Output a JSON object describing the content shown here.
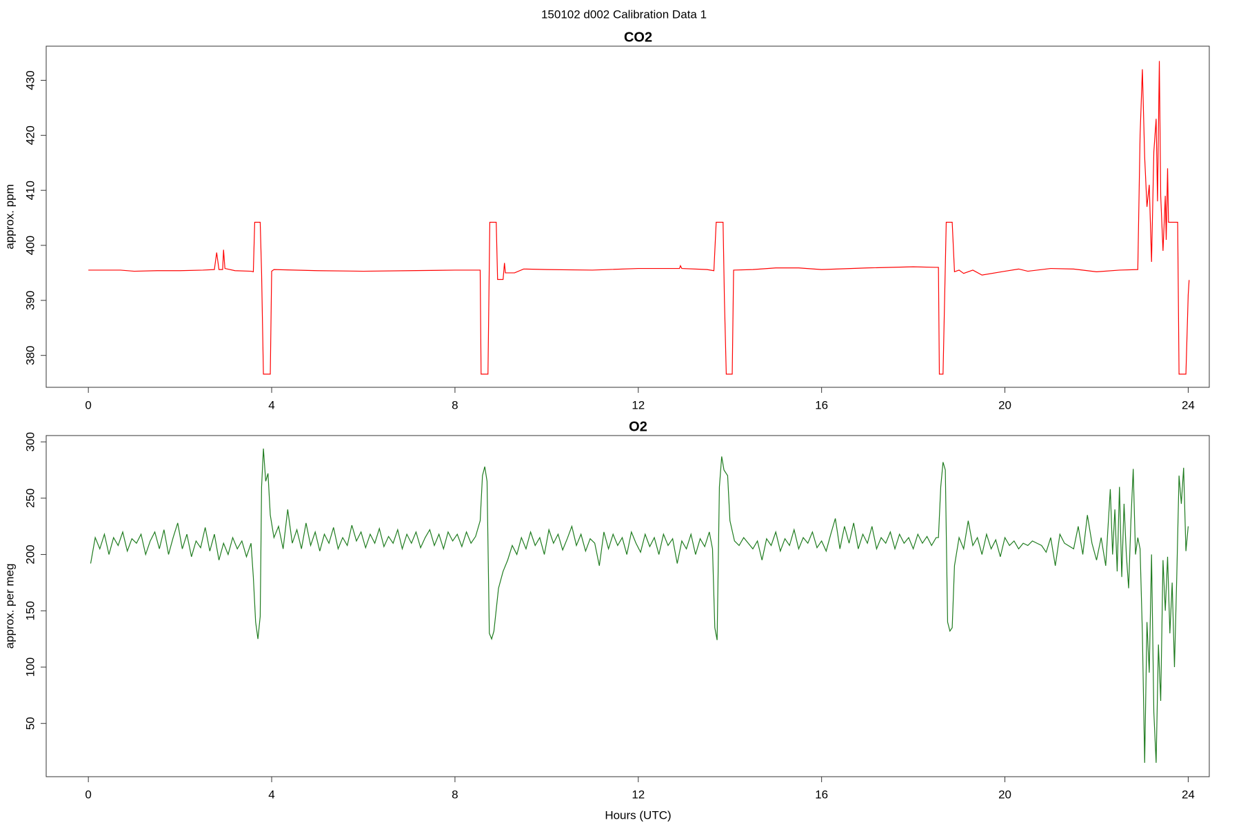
{
  "title": "150102   d002   Calibration Data 1",
  "chart_data": [
    {
      "type": "line",
      "title": "CO2",
      "y_label": "approx. ppm",
      "xlim": [
        -0.92,
        24.46
      ],
      "xticks": [
        0,
        4,
        8,
        12,
        16,
        20,
        24
      ],
      "ylim": [
        374.2,
        436.2
      ],
      "yticks": [
        380,
        390,
        400,
        410,
        420,
        430
      ],
      "series": [
        {
          "name": "CO2",
          "color": "#ff0000",
          "x": [
            0,
            0.7,
            1,
            1.5,
            2,
            2.5,
            2.75,
            2.8,
            2.85,
            2.93,
            2.95,
            2.98,
            3.2,
            3.55,
            3.6,
            3.63,
            3.75,
            3.78,
            3.82,
            3.97,
            4.0,
            4.05,
            5,
            6,
            7,
            8,
            8.55,
            8.57,
            8.72,
            8.76,
            8.9,
            8.93,
            9.05,
            9.08,
            9.1,
            9.3,
            9.5,
            10,
            11,
            12,
            12.9,
            12.92,
            12.95,
            13.5,
            13.65,
            13.7,
            13.85,
            13.88,
            13.92,
            14.05,
            14.08,
            14.5,
            15,
            15.5,
            16,
            17,
            18,
            18.5,
            18.55,
            18.57,
            18.65,
            18.72,
            18.85,
            18.9,
            19,
            19.1,
            19.3,
            19.5,
            20,
            20.3,
            20.5,
            21,
            21.5,
            22,
            22.5,
            22.9,
            22.95,
            23.0,
            23.05,
            23.1,
            23.15,
            23.2,
            23.25,
            23.3,
            23.33,
            23.37,
            23.4,
            23.45,
            23.5,
            23.52,
            23.55,
            23.57,
            23.77,
            23.8,
            23.95,
            24.0,
            24.02
          ],
          "values": [
            395.5,
            395.5,
            395.3,
            395.4,
            395.4,
            395.5,
            395.6,
            398.7,
            395.6,
            395.6,
            399.2,
            395.8,
            395.4,
            395.3,
            395.2,
            404.2,
            404.2,
            395,
            376.6,
            376.6,
            395.3,
            395.6,
            395.4,
            395.3,
            395.4,
            395.5,
            395.5,
            376.6,
            376.6,
            404.2,
            404.2,
            393.8,
            393.8,
            396.8,
            395,
            395,
            395.7,
            395.6,
            395.5,
            395.8,
            395.8,
            396.3,
            395.8,
            395.6,
            395.4,
            404.2,
            404.2,
            390,
            376.6,
            376.6,
            395.5,
            395.6,
            395.9,
            395.9,
            395.6,
            395.9,
            396.1,
            396,
            396,
            376.6,
            376.6,
            404.2,
            404.2,
            395.2,
            395.5,
            394.9,
            395.5,
            394.6,
            395.3,
            395.7,
            395.3,
            395.8,
            395.7,
            395.2,
            395.5,
            395.6,
            420,
            432,
            416,
            407,
            411,
            397,
            417,
            423,
            408,
            433.5,
            409,
            399,
            409,
            401,
            414,
            404.2,
            404.2,
            376.6,
            376.6,
            391,
            393.7
          ]
        }
      ]
    },
    {
      "type": "line",
      "title": "O2",
      "y_label": "approx. per meg",
      "x_label": "Hours (UTC)",
      "xlim": [
        -0.92,
        24.46
      ],
      "xticks": [
        0,
        4,
        8,
        12,
        16,
        20,
        24
      ],
      "ylim": [
        2.7,
        305.6
      ],
      "yticks": [
        50,
        100,
        150,
        200,
        250,
        300
      ],
      "series": [
        {
          "name": "O2",
          "color": "#1e7b1e",
          "x": [
            0.05,
            0.15,
            0.25,
            0.35,
            0.45,
            0.55,
            0.65,
            0.75,
            0.85,
            0.95,
            1.05,
            1.15,
            1.25,
            1.35,
            1.45,
            1.55,
            1.65,
            1.75,
            1.85,
            1.95,
            2.05,
            2.15,
            2.25,
            2.35,
            2.45,
            2.55,
            2.65,
            2.75,
            2.85,
            2.95,
            3.05,
            3.15,
            3.25,
            3.35,
            3.45,
            3.55,
            3.6,
            3.65,
            3.7,
            3.75,
            3.78,
            3.82,
            3.87,
            3.92,
            3.97,
            4.05,
            4.15,
            4.25,
            4.35,
            4.45,
            4.55,
            4.65,
            4.75,
            4.85,
            4.95,
            5.05,
            5.15,
            5.25,
            5.35,
            5.45,
            5.55,
            5.65,
            5.75,
            5.85,
            5.95,
            6.05,
            6.15,
            6.25,
            6.35,
            6.45,
            6.55,
            6.65,
            6.75,
            6.85,
            6.95,
            7.05,
            7.15,
            7.25,
            7.35,
            7.45,
            7.55,
            7.65,
            7.75,
            7.85,
            7.95,
            8.05,
            8.15,
            8.25,
            8.35,
            8.45,
            8.55,
            8.6,
            8.65,
            8.7,
            8.75,
            8.8,
            8.85,
            8.95,
            9.05,
            9.15,
            9.25,
            9.35,
            9.45,
            9.55,
            9.65,
            9.75,
            9.85,
            9.95,
            10.05,
            10.15,
            10.25,
            10.35,
            10.45,
            10.55,
            10.65,
            10.75,
            10.85,
            10.95,
            11.05,
            11.15,
            11.25,
            11.35,
            11.45,
            11.55,
            11.65,
            11.75,
            11.85,
            11.95,
            12.05,
            12.15,
            12.25,
            12.35,
            12.45,
            12.55,
            12.65,
            12.75,
            12.85,
            12.95,
            13.05,
            13.15,
            13.25,
            13.35,
            13.45,
            13.55,
            13.62,
            13.67,
            13.72,
            13.77,
            13.82,
            13.87,
            13.95,
            14.0,
            14.1,
            14.2,
            14.3,
            14.4,
            14.5,
            14.6,
            14.7,
            14.8,
            14.9,
            15.0,
            15.1,
            15.2,
            15.3,
            15.4,
            15.5,
            15.6,
            15.7,
            15.8,
            15.9,
            16.0,
            16.1,
            16.2,
            16.3,
            16.4,
            16.5,
            16.6,
            16.7,
            16.8,
            16.9,
            17.0,
            17.1,
            17.2,
            17.3,
            17.4,
            17.5,
            17.6,
            17.7,
            17.8,
            17.9,
            18.0,
            18.1,
            18.2,
            18.3,
            18.4,
            18.5,
            18.55,
            18.6,
            18.65,
            18.7,
            18.75,
            18.8,
            18.85,
            18.9,
            19.0,
            19.1,
            19.2,
            19.3,
            19.4,
            19.5,
            19.6,
            19.7,
            19.8,
            19.9,
            20.0,
            20.1,
            20.2,
            20.3,
            20.4,
            20.5,
            20.6,
            20.7,
            20.8,
            20.9,
            21.0,
            21.1,
            21.2,
            21.3,
            21.5,
            21.6,
            21.7,
            21.8,
            21.9,
            22.0,
            22.1,
            22.2,
            22.3,
            22.35,
            22.4,
            22.45,
            22.5,
            22.55,
            22.6,
            22.65,
            22.7,
            22.75,
            22.8,
            22.85,
            22.9,
            22.95,
            23.0,
            23.05,
            23.1,
            23.15,
            23.2,
            23.25,
            23.3,
            23.35,
            23.4,
            23.45,
            23.5,
            23.55,
            23.6,
            23.65,
            23.7,
            23.75,
            23.8,
            23.85,
            23.9,
            23.95,
            24.0
          ],
          "values": [
            192,
            215,
            205,
            218,
            200,
            215,
            208,
            220,
            203,
            214,
            210,
            218,
            200,
            212,
            220,
            205,
            222,
            200,
            215,
            228,
            205,
            218,
            198,
            212,
            206,
            224,
            203,
            218,
            195,
            210,
            200,
            215,
            205,
            212,
            198,
            210,
            180,
            140,
            125,
            145,
            260,
            294,
            265,
            272,
            235,
            215,
            225,
            205,
            240,
            210,
            222,
            205,
            228,
            208,
            220,
            203,
            218,
            210,
            224,
            205,
            215,
            208,
            226,
            212,
            220,
            206,
            218,
            210,
            223,
            207,
            216,
            210,
            222,
            205,
            218,
            210,
            220,
            206,
            215,
            222,
            208,
            218,
            205,
            220,
            212,
            218,
            207,
            220,
            210,
            216,
            230,
            270,
            278,
            265,
            130,
            125,
            132,
            170,
            185,
            195,
            208,
            200,
            215,
            205,
            220,
            208,
            215,
            200,
            222,
            210,
            218,
            204,
            214,
            225,
            208,
            218,
            203,
            214,
            210,
            190,
            220,
            205,
            218,
            208,
            215,
            200,
            220,
            210,
            202,
            218,
            207,
            215,
            200,
            218,
            208,
            214,
            192,
            212,
            205,
            218,
            200,
            214,
            207,
            220,
            205,
            135,
            124,
            260,
            287,
            275,
            270,
            230,
            212,
            208,
            215,
            210,
            205,
            212,
            195,
            214,
            208,
            220,
            203,
            214,
            208,
            222,
            205,
            215,
            210,
            220,
            206,
            212,
            203,
            218,
            232,
            205,
            225,
            210,
            228,
            205,
            218,
            210,
            225,
            205,
            215,
            210,
            220,
            205,
            218,
            210,
            215,
            205,
            218,
            210,
            216,
            208,
            215,
            215,
            260,
            282,
            275,
            140,
            132,
            135,
            190,
            215,
            205,
            230,
            208,
            215,
            200,
            218,
            205,
            213,
            198,
            215,
            208,
            212,
            205,
            210,
            208,
            212,
            210,
            208,
            202,
            215,
            190,
            218,
            210,
            205,
            225,
            200,
            235,
            210,
            195,
            215,
            190,
            258,
            200,
            240,
            185,
            260,
            180,
            245,
            200,
            170,
            230,
            276,
            200,
            215,
            205,
            130,
            15,
            140,
            95,
            200,
            60,
            15,
            120,
            70,
            195,
            150,
            198,
            130,
            175,
            100,
            180,
            270,
            245,
            277,
            203,
            225
          ]
        }
      ]
    }
  ]
}
